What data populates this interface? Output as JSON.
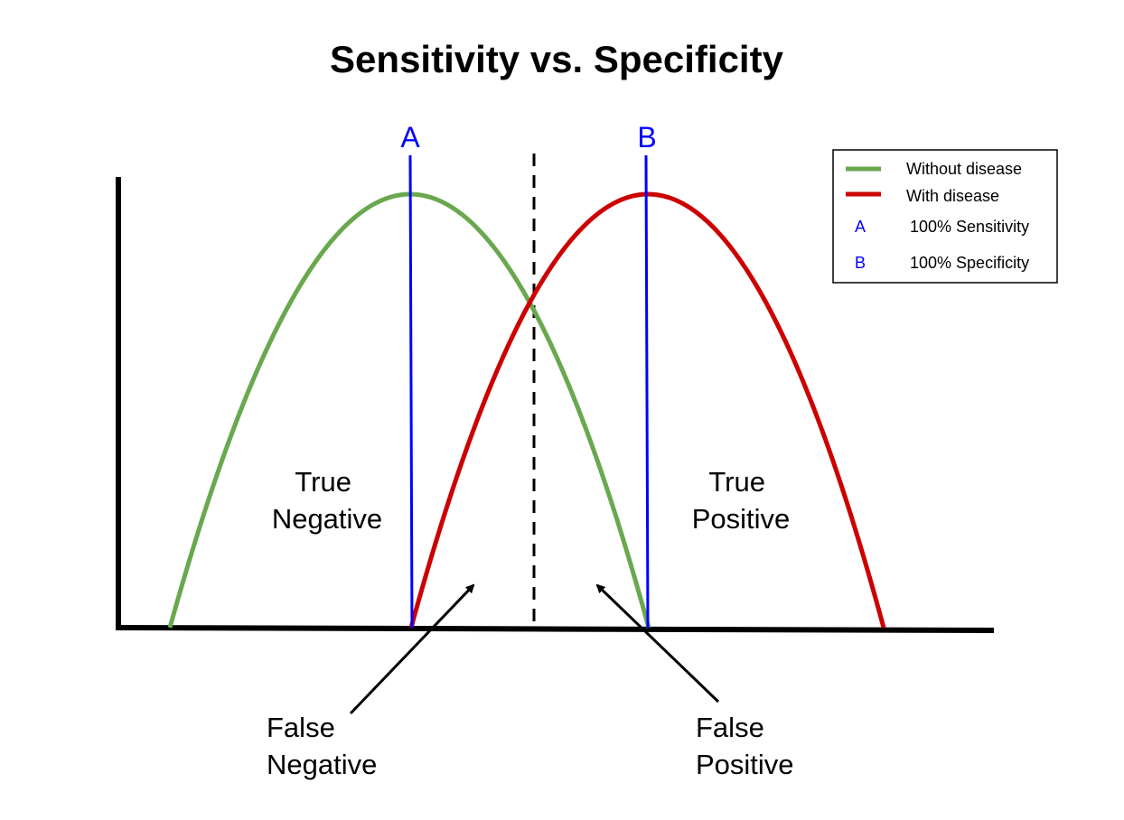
{
  "title": "Sensitivity vs. Specificity",
  "colors": {
    "without_disease": "#6aa84f",
    "with_disease": "#cc0000",
    "cutoff_lines": "#0000ff",
    "axis": "#000000"
  },
  "markers": {
    "a": "A",
    "b": "B"
  },
  "regions": {
    "true_negative": [
      "True",
      "Negative"
    ],
    "true_positive": [
      "True",
      "Positive"
    ],
    "false_negative": [
      "False",
      "Negative"
    ],
    "false_positive": [
      "False",
      "Positive"
    ]
  },
  "legend": {
    "without_disease": "Without disease",
    "with_disease": "With disease",
    "a_key": "A",
    "a_text": "100% Sensitivity",
    "b_key": "B",
    "b_text": "100% Specificity"
  }
}
